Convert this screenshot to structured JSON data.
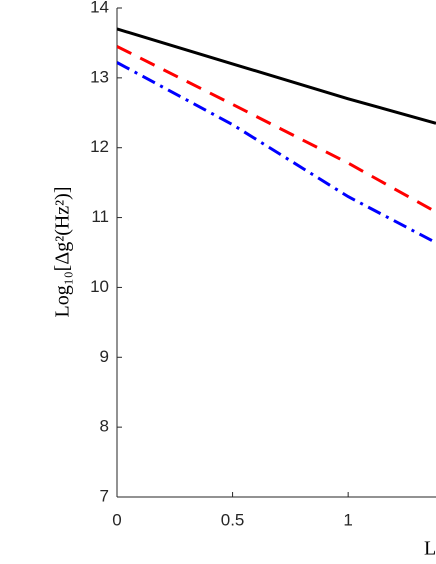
{
  "chart_data": {
    "type": "line",
    "ylabel": "Log₁₀[Δg²(Hz²)]",
    "xlabel": "L",
    "x": [
      0,
      0.5,
      1,
      1.38
    ],
    "series": [
      {
        "color": "#000000",
        "dash": "solid",
        "values": [
          13.7,
          13.2,
          12.7,
          12.35
        ]
      },
      {
        "color": "#ff0000",
        "dash": "dashed",
        "values": [
          13.45,
          12.62,
          11.78,
          11.08
        ]
      },
      {
        "color": "#0000ff",
        "dash": "dashdot",
        "values": [
          13.22,
          12.33,
          11.3,
          10.64
        ]
      }
    ],
    "xlim": [
      0,
      1.38
    ],
    "xticks": [
      0,
      0.5,
      1
    ],
    "ylim": [
      7,
      14
    ],
    "yticks": [
      7,
      8,
      9,
      10,
      11,
      12,
      13,
      14
    ]
  }
}
